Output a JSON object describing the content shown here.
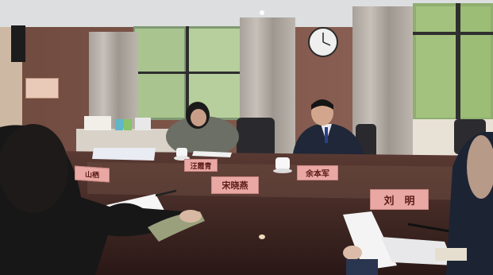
{
  "nameplates": {
    "left": "山栖",
    "woman": "汪霞青",
    "man": "余本军",
    "center": "宋晓燕",
    "right": "刘　明"
  },
  "wall_notice": "",
  "colors": {
    "ceiling": "#dfe1e2",
    "wall": "#8a5e4e",
    "curtain": "#b9b3ad",
    "table": "#3e2622",
    "nameplate": "#e9a8a4",
    "window_glass": "#a9c48e"
  },
  "objects": [
    "wall-clock-icon",
    "window",
    "curtain",
    "conference-table",
    "teacup-icon",
    "paper-document",
    "pen-icon",
    "speaker-icon"
  ]
}
